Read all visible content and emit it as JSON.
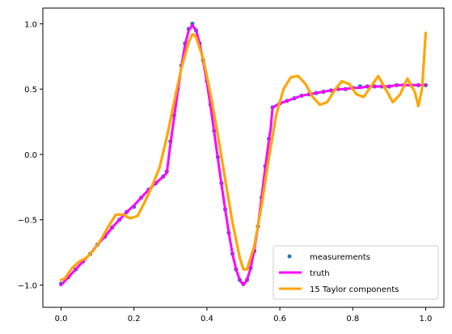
{
  "chart_data": {
    "type": "line",
    "title": "",
    "xlabel": "",
    "ylabel": "",
    "xlim": [
      -0.05,
      1.05
    ],
    "ylim": [
      -1.17,
      1.12
    ],
    "xticks": [
      0.0,
      0.2,
      0.4,
      0.6,
      0.8,
      1.0
    ],
    "xtick_labels": [
      "0.0",
      "0.2",
      "0.4",
      "0.6",
      "0.8",
      "1.0"
    ],
    "yticks": [
      -1.0,
      -0.5,
      0.0,
      0.5,
      1.0
    ],
    "ytick_labels": [
      "−1.0",
      "−0.5",
      "0.0",
      "0.5",
      "1.0"
    ],
    "grid": false,
    "legend_position": "lower right",
    "series": [
      {
        "name": "measurements",
        "kind": "scatter",
        "color": "#1f77b4",
        "x": [
          0.0,
          0.02,
          0.04,
          0.06,
          0.08,
          0.1,
          0.12,
          0.14,
          0.16,
          0.18,
          0.2,
          0.22,
          0.24,
          0.26,
          0.28,
          0.29,
          0.3,
          0.31,
          0.32,
          0.33,
          0.34,
          0.35,
          0.36,
          0.37,
          0.38,
          0.39,
          0.4,
          0.41,
          0.42,
          0.43,
          0.44,
          0.45,
          0.46,
          0.47,
          0.48,
          0.49,
          0.5,
          0.51,
          0.52,
          0.53,
          0.54,
          0.55,
          0.56,
          0.57,
          0.58,
          0.6,
          0.62,
          0.64,
          0.66,
          0.68,
          0.7,
          0.72,
          0.74,
          0.76,
          0.78,
          0.8,
          0.82,
          0.84,
          0.86,
          0.88,
          0.9,
          0.92,
          0.94,
          0.96,
          0.98,
          1.0
        ],
        "y": [
          -0.99,
          -0.94,
          -0.88,
          -0.82,
          -0.76,
          -0.69,
          -0.63,
          -0.56,
          -0.5,
          -0.44,
          -0.4,
          -0.33,
          -0.27,
          -0.22,
          -0.17,
          -0.13,
          0.1,
          0.3,
          0.5,
          0.68,
          0.85,
          0.96,
          1.0,
          0.95,
          0.85,
          0.72,
          0.56,
          0.38,
          0.18,
          -0.02,
          -0.22,
          -0.42,
          -0.6,
          -0.76,
          -0.88,
          -0.96,
          -0.99,
          -0.96,
          -0.87,
          -0.74,
          -0.55,
          -0.33,
          -0.09,
          0.12,
          0.36,
          0.39,
          0.41,
          0.43,
          0.45,
          0.46,
          0.47,
          0.48,
          0.49,
          0.5,
          0.5,
          0.51,
          0.52,
          0.52,
          0.52,
          0.52,
          0.52,
          0.53,
          0.53,
          0.53,
          0.53,
          0.53
        ]
      },
      {
        "name": "truth",
        "kind": "line",
        "color": "#ff00ff",
        "x": [
          0.0,
          0.02,
          0.04,
          0.06,
          0.08,
          0.1,
          0.12,
          0.14,
          0.16,
          0.18,
          0.2,
          0.22,
          0.24,
          0.26,
          0.28,
          0.29,
          0.3,
          0.31,
          0.32,
          0.33,
          0.34,
          0.35,
          0.36,
          0.37,
          0.38,
          0.39,
          0.4,
          0.41,
          0.42,
          0.43,
          0.44,
          0.45,
          0.46,
          0.47,
          0.48,
          0.49,
          0.5,
          0.51,
          0.52,
          0.53,
          0.54,
          0.55,
          0.56,
          0.57,
          0.575,
          0.58,
          0.6,
          0.62,
          0.64,
          0.66,
          0.68,
          0.7,
          0.72,
          0.74,
          0.76,
          0.78,
          0.8,
          0.82,
          0.84,
          0.86,
          0.88,
          0.9,
          0.92,
          0.94,
          0.96,
          0.98,
          1.0
        ],
        "y": [
          -1.0,
          -0.94,
          -0.88,
          -0.82,
          -0.76,
          -0.69,
          -0.63,
          -0.56,
          -0.5,
          -0.44,
          -0.39,
          -0.33,
          -0.27,
          -0.22,
          -0.17,
          -0.14,
          0.08,
          0.28,
          0.48,
          0.67,
          0.84,
          0.95,
          0.99,
          0.95,
          0.85,
          0.71,
          0.55,
          0.37,
          0.17,
          -0.03,
          -0.23,
          -0.42,
          -0.6,
          -0.76,
          -0.88,
          -0.96,
          -1.0,
          -0.96,
          -0.87,
          -0.73,
          -0.55,
          -0.33,
          -0.1,
          0.11,
          0.2,
          0.36,
          0.39,
          0.41,
          0.43,
          0.45,
          0.46,
          0.47,
          0.48,
          0.49,
          0.5,
          0.5,
          0.51,
          0.51,
          0.52,
          0.52,
          0.52,
          0.52,
          0.53,
          0.53,
          0.53,
          0.53,
          0.53
        ]
      },
      {
        "name": "15 Taylor components",
        "kind": "line",
        "color": "#ffa500",
        "x": [
          0.0,
          0.01,
          0.03,
          0.05,
          0.07,
          0.09,
          0.11,
          0.13,
          0.15,
          0.17,
          0.19,
          0.21,
          0.23,
          0.25,
          0.27,
          0.29,
          0.31,
          0.33,
          0.35,
          0.36,
          0.37,
          0.39,
          0.41,
          0.43,
          0.45,
          0.47,
          0.49,
          0.5,
          0.51,
          0.53,
          0.55,
          0.57,
          0.59,
          0.61,
          0.63,
          0.65,
          0.67,
          0.69,
          0.71,
          0.73,
          0.75,
          0.77,
          0.79,
          0.81,
          0.83,
          0.85,
          0.87,
          0.89,
          0.91,
          0.93,
          0.95,
          0.97,
          0.98,
          0.99,
          1.0
        ],
        "y": [
          -0.96,
          -0.95,
          -0.87,
          -0.82,
          -0.79,
          -0.73,
          -0.65,
          -0.55,
          -0.46,
          -0.46,
          -0.49,
          -0.47,
          -0.36,
          -0.24,
          -0.1,
          0.13,
          0.4,
          0.66,
          0.86,
          0.92,
          0.9,
          0.73,
          0.46,
          0.15,
          -0.19,
          -0.52,
          -0.79,
          -0.88,
          -0.88,
          -0.7,
          -0.39,
          -0.02,
          0.3,
          0.5,
          0.59,
          0.6,
          0.54,
          0.44,
          0.38,
          0.4,
          0.49,
          0.56,
          0.54,
          0.46,
          0.44,
          0.52,
          0.6,
          0.5,
          0.4,
          0.46,
          0.58,
          0.48,
          0.37,
          0.5,
          0.93
        ]
      }
    ]
  }
}
